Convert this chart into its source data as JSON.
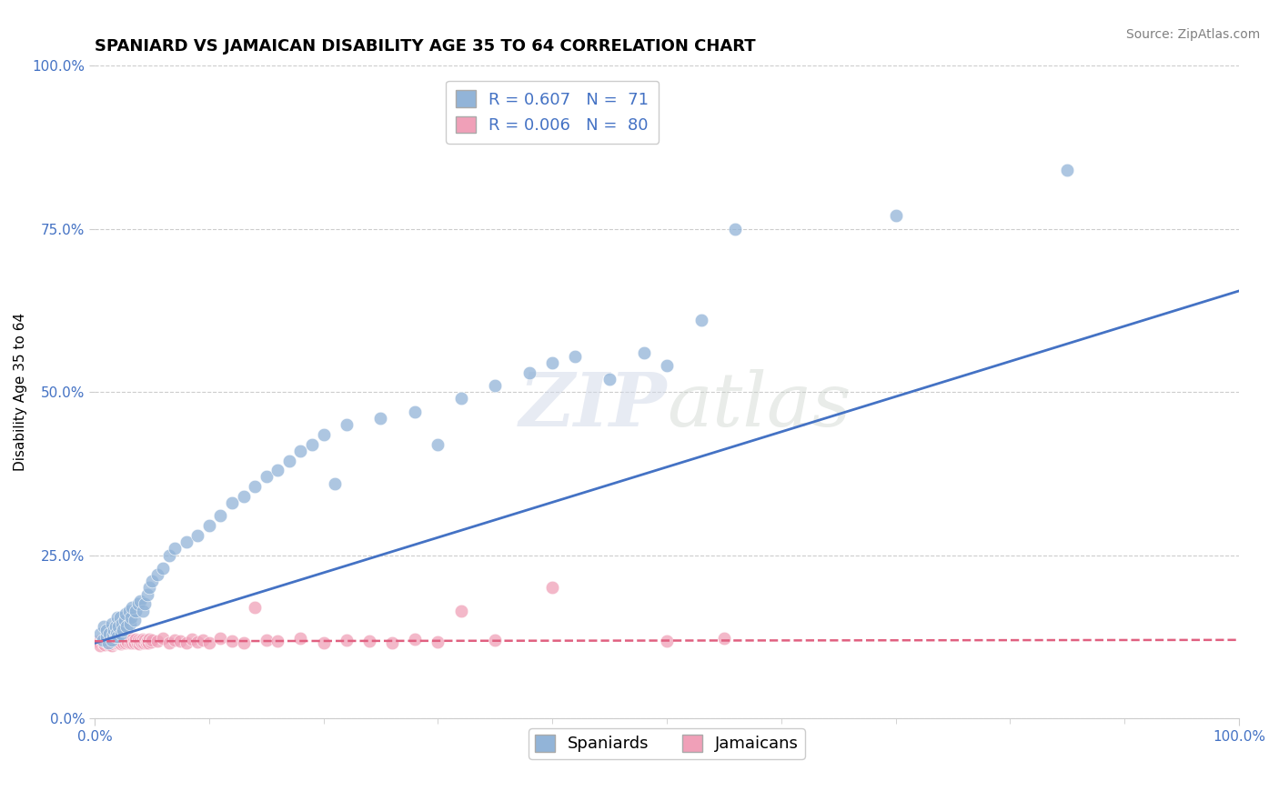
{
  "title": "SPANIARD VS JAMAICAN DISABILITY AGE 35 TO 64 CORRELATION CHART",
  "source_text": "Source: ZipAtlas.com",
  "ylabel": "Disability Age 35 to 64",
  "xlim": [
    0,
    1
  ],
  "ylim": [
    0,
    1
  ],
  "ytick_vals": [
    0.0,
    0.25,
    0.5,
    0.75,
    1.0
  ],
  "ytick_labels": [
    "0.0%",
    "25.0%",
    "50.0%",
    "75.0%",
    "100.0%"
  ],
  "xtick_vals": [
    0.0,
    1.0
  ],
  "xtick_labels": [
    "0.0%",
    "100.0%"
  ],
  "spaniards_color": "#92b4d8",
  "jamaicans_color": "#f0a0b8",
  "trend_spaniard_color": "#4472c4",
  "trend_jamaican_color": "#e06080",
  "watermark_zip": "ZIP",
  "watermark_atlas": "atlas",
  "background_color": "#ffffff",
  "grid_color": "#cccccc",
  "title_fontsize": 13,
  "axis_label_fontsize": 11,
  "tick_fontsize": 11,
  "legend_fontsize": 13,
  "source_fontsize": 10,
  "spaniards_x": [
    0.005,
    0.007,
    0.008,
    0.01,
    0.01,
    0.012,
    0.013,
    0.015,
    0.015,
    0.016,
    0.017,
    0.018,
    0.018,
    0.019,
    0.02,
    0.02,
    0.021,
    0.022,
    0.023,
    0.024,
    0.025,
    0.026,
    0.027,
    0.028,
    0.03,
    0.031,
    0.032,
    0.033,
    0.035,
    0.036,
    0.038,
    0.04,
    0.042,
    0.044,
    0.046,
    0.048,
    0.05,
    0.055,
    0.06,
    0.065,
    0.07,
    0.08,
    0.09,
    0.1,
    0.11,
    0.12,
    0.13,
    0.14,
    0.15,
    0.16,
    0.17,
    0.18,
    0.19,
    0.2,
    0.21,
    0.22,
    0.25,
    0.28,
    0.3,
    0.32,
    0.35,
    0.38,
    0.4,
    0.42,
    0.45,
    0.48,
    0.5,
    0.53,
    0.56,
    0.7,
    0.85
  ],
  "spaniards_y": [
    0.13,
    0.12,
    0.14,
    0.125,
    0.135,
    0.115,
    0.13,
    0.12,
    0.145,
    0.128,
    0.135,
    0.125,
    0.14,
    0.13,
    0.155,
    0.125,
    0.14,
    0.155,
    0.13,
    0.145,
    0.135,
    0.15,
    0.16,
    0.14,
    0.165,
    0.145,
    0.155,
    0.17,
    0.15,
    0.165,
    0.175,
    0.18,
    0.165,
    0.175,
    0.19,
    0.2,
    0.21,
    0.22,
    0.23,
    0.25,
    0.26,
    0.27,
    0.28,
    0.295,
    0.31,
    0.33,
    0.34,
    0.355,
    0.37,
    0.38,
    0.395,
    0.41,
    0.42,
    0.435,
    0.36,
    0.45,
    0.46,
    0.47,
    0.42,
    0.49,
    0.51,
    0.53,
    0.545,
    0.555,
    0.52,
    0.56,
    0.54,
    0.61,
    0.75,
    0.77,
    0.84
  ],
  "jamaicans_x": [
    0.003,
    0.005,
    0.006,
    0.007,
    0.008,
    0.009,
    0.01,
    0.01,
    0.011,
    0.012,
    0.013,
    0.013,
    0.014,
    0.015,
    0.015,
    0.016,
    0.017,
    0.018,
    0.018,
    0.019,
    0.02,
    0.02,
    0.021,
    0.022,
    0.023,
    0.024,
    0.025,
    0.026,
    0.027,
    0.028,
    0.029,
    0.03,
    0.031,
    0.032,
    0.033,
    0.034,
    0.035,
    0.036,
    0.037,
    0.038,
    0.039,
    0.04,
    0.041,
    0.042,
    0.043,
    0.044,
    0.045,
    0.046,
    0.047,
    0.048,
    0.049,
    0.05,
    0.055,
    0.06,
    0.065,
    0.07,
    0.075,
    0.08,
    0.085,
    0.09,
    0.095,
    0.1,
    0.11,
    0.12,
    0.13,
    0.14,
    0.15,
    0.16,
    0.18,
    0.2,
    0.22,
    0.24,
    0.26,
    0.28,
    0.3,
    0.32,
    0.35,
    0.4,
    0.5,
    0.55
  ],
  "jamaicans_y": [
    0.118,
    0.112,
    0.12,
    0.115,
    0.118,
    0.113,
    0.117,
    0.122,
    0.115,
    0.12,
    0.113,
    0.118,
    0.115,
    0.12,
    0.112,
    0.118,
    0.114,
    0.12,
    0.116,
    0.119,
    0.115,
    0.121,
    0.117,
    0.12,
    0.114,
    0.119,
    0.116,
    0.121,
    0.115,
    0.12,
    0.117,
    0.122,
    0.115,
    0.12,
    0.116,
    0.119,
    0.115,
    0.121,
    0.116,
    0.12,
    0.114,
    0.119,
    0.116,
    0.121,
    0.115,
    0.12,
    0.116,
    0.119,
    0.115,
    0.121,
    0.117,
    0.12,
    0.118,
    0.122,
    0.116,
    0.12,
    0.118,
    0.115,
    0.121,
    0.117,
    0.12,
    0.116,
    0.122,
    0.118,
    0.115,
    0.17,
    0.12,
    0.118,
    0.122,
    0.116,
    0.12,
    0.118,
    0.115,
    0.121,
    0.117,
    0.165,
    0.12,
    0.2,
    0.118,
    0.122
  ],
  "trend_spaniard_x0": 0.0,
  "trend_spaniard_x1": 1.0,
  "trend_spaniard_y0": 0.115,
  "trend_spaniard_y1": 0.655,
  "trend_jamaican_x0": 0.0,
  "trend_jamaican_x1": 1.0,
  "trend_jamaican_y0": 0.118,
  "trend_jamaican_y1": 0.12
}
